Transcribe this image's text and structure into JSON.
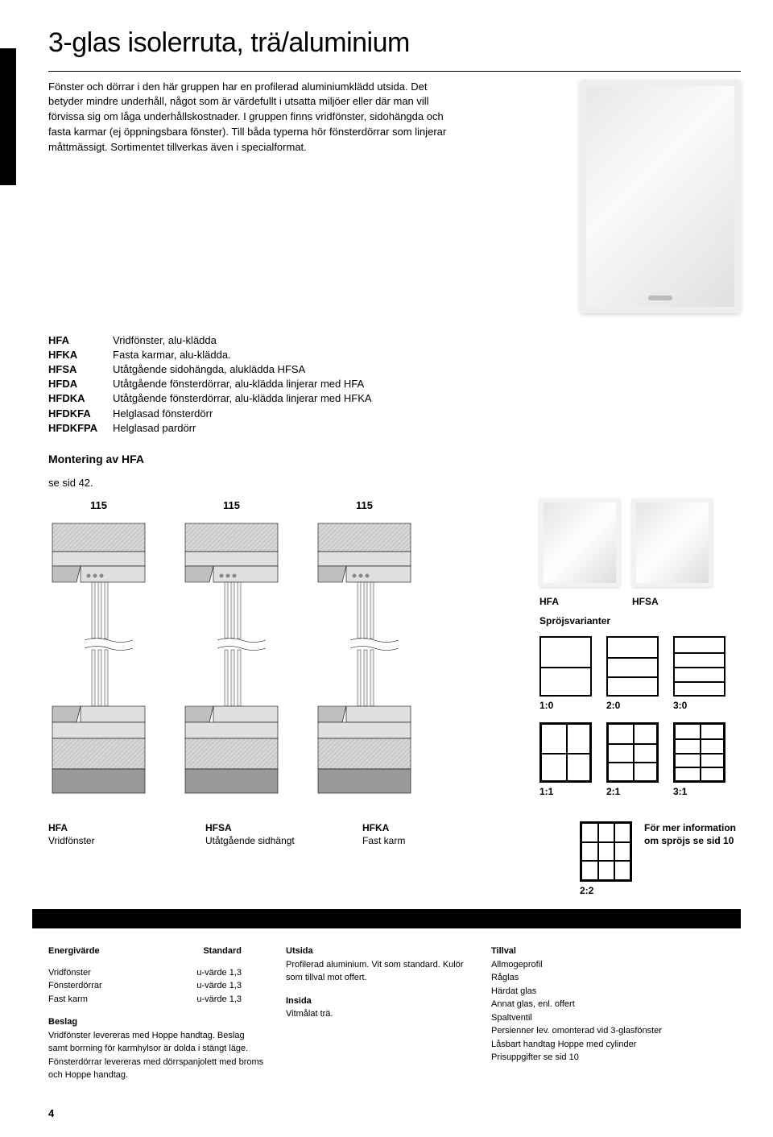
{
  "page": {
    "title": "3-glas isolerruta, trä/aluminium",
    "intro": "Fönster och dörrar i den här gruppen har en profilerad aluminiumklädd utsida. Det betyder mindre underhåll, något som är värdefullt i utsatta miljöer eller där man vill förvissa sig om låga underhållskostnader. I gruppen finns vridfönster, sidohängda och fasta karmar (ej öppningsbara fönster). Till båda typerna hör fönsterdörrar som linjerar måttmässigt. Sortimentet tillverkas även i specialformat.",
    "page_number": "4"
  },
  "definitions": [
    {
      "code": "HFA",
      "desc": "Vridfönster, alu-klädda"
    },
    {
      "code": "HFKA",
      "desc": "Fasta karmar, alu-klädda."
    },
    {
      "code": "HFSA",
      "desc": "Utåtgående sidohängda, aluklädda HFSA"
    },
    {
      "code": "HFDA",
      "desc": "Utåtgående fönsterdörrar, alu-klädda linjerar med HFA"
    },
    {
      "code": "HFDKA",
      "desc": "Utåtgående fönsterdörrar, alu-klädda linjerar med HFKA"
    },
    {
      "code": "HFDKFA",
      "desc": "Helglasad fönsterdörr"
    },
    {
      "code": "HFDKFPA",
      "desc": "Helglasad pardörr"
    }
  ],
  "montering": {
    "title": "Montering av HFA",
    "sub": "se sid 42."
  },
  "cross_sections": [
    {
      "label": "115"
    },
    {
      "label": "115"
    },
    {
      "label": "115"
    }
  ],
  "thumbs": {
    "left": "HFA",
    "right": "HFSA",
    "sproj": "Spröjsvarianter"
  },
  "variant_grid": [
    {
      "label": "1:0",
      "h": 1,
      "v": 0,
      "thin": true
    },
    {
      "label": "2:0",
      "h": 2,
      "v": 0,
      "thin": true
    },
    {
      "label": "3:0",
      "h": 3,
      "v": 0,
      "thin": true
    },
    {
      "label": "1:1",
      "h": 1,
      "v": 1
    },
    {
      "label": "2:1",
      "h": 2,
      "v": 1
    },
    {
      "label": "3:1",
      "h": 3,
      "v": 1
    }
  ],
  "variant_22": {
    "label": "2:2"
  },
  "bottom_labels": [
    {
      "code": "HFA",
      "desc": "Vridfönster"
    },
    {
      "code": "HFSA",
      "desc": "Utåtgående sidhängt"
    },
    {
      "code": "HFKA",
      "desc": "Fast karm"
    }
  ],
  "more_info": "För mer information om spröjs se sid 10",
  "specs": {
    "energi_header": "Energivärde",
    "standard_header": "Standard",
    "energi_rows": [
      {
        "name": "Vridfönster",
        "val": "u-värde 1,3"
      },
      {
        "name": "Fönsterdörrar",
        "val": "u-värde 1,3"
      },
      {
        "name": "Fast karm",
        "val": "u-värde 1,3"
      }
    ],
    "beslag_header": "Beslag",
    "beslag_text": "Vridfönster levereras med Hoppe handtag. Beslag samt borrning för karmhylsor är dolda i stängt läge. Fönsterdörrar levereras med dörrspanjolett med broms och Hoppe handtag.",
    "utsida_header": "Utsida",
    "utsida_text": "Profilerad aluminium. Vit som standard. Kulör som tillval mot offert.",
    "insida_header": "Insida",
    "insida_text": "Vitmålat trä.",
    "tillval_header": "Tillval",
    "tillval_list": [
      "Allmogeprofil",
      "Råglas",
      "Härdat glas",
      "Annat glas, enl. offert",
      "Spaltventil",
      "Persienner lev. omonterad vid 3-glasfönster",
      "Låsbart handtag Hoppe med cylinder",
      "Prisuppgifter se sid 10"
    ]
  },
  "colors": {
    "line": "#000000",
    "light": "#e0e0e0",
    "mid": "#bfbfbf",
    "dark": "#9a9a9a",
    "hatch": "#d6d6d6"
  }
}
